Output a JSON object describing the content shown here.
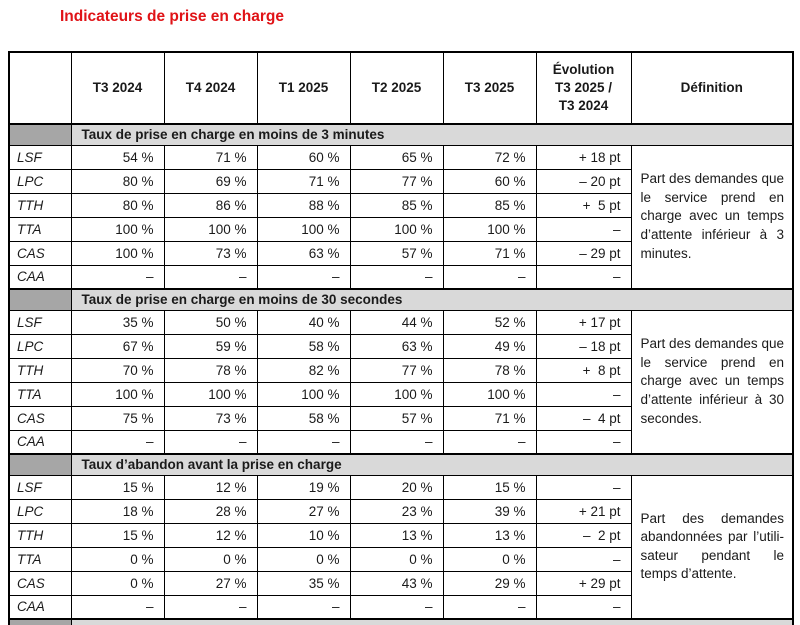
{
  "title": "Indicateurs de prise en charge",
  "colors": {
    "title_red": "#e01317",
    "section_band_gray": "#d9d9d9",
    "section_label_gray": "#a6a6a6",
    "border_black": "#000000"
  },
  "table": {
    "period_columns": [
      "T3 2024",
      "T4 2024",
      "T1 2025",
      "T2 2025",
      "T3 2025"
    ],
    "evolution_header": "Évolution\nT3 2025 /\nT3 2024",
    "definition_header": "Définition",
    "sections": [
      {
        "title": "Taux de prise en charge en moins de 3 minutes",
        "definition": "Part des demandes que le service prend en charge avec un temps d’attente inférieur à 3 minutes.",
        "rows": [
          {
            "label": "LSF",
            "values": [
              "54 %",
              "71 %",
              "60 %",
              "65 %",
              "72 %"
            ],
            "evolution": "+ 18 pt"
          },
          {
            "label": "LPC",
            "values": [
              "80 %",
              "69 %",
              "71 %",
              "77 %",
              "60 %"
            ],
            "evolution": "– 20 pt"
          },
          {
            "label": "TTH",
            "values": [
              "80 %",
              "86 %",
              "88 %",
              "85 %",
              "85 %"
            ],
            "evolution": "+  5 pt"
          },
          {
            "label": "TTA",
            "values": [
              "100 %",
              "100 %",
              "100 %",
              "100 %",
              "100 %"
            ],
            "evolution": "–"
          },
          {
            "label": "CAS",
            "values": [
              "100 %",
              "73 %",
              "63 %",
              "57 %",
              "71 %"
            ],
            "evolution": "– 29 pt"
          },
          {
            "label": "CAA",
            "values": [
              "–",
              "–",
              "–",
              "–",
              "–"
            ],
            "evolution": "–"
          }
        ]
      },
      {
        "title": "Taux de prise en charge en moins de 30 secondes",
        "definition": "Part des demandes que le service prend en charge avec un temps d’attente inférieur à 30 secondes.",
        "rows": [
          {
            "label": "LSF",
            "values": [
              "35 %",
              "50 %",
              "40 %",
              "44 %",
              "52 %"
            ],
            "evolution": "+ 17 pt"
          },
          {
            "label": "LPC",
            "values": [
              "67 %",
              "59 %",
              "58 %",
              "63 %",
              "49 %"
            ],
            "evolution": "– 18 pt"
          },
          {
            "label": "TTH",
            "values": [
              "70 %",
              "78 %",
              "82 %",
              "77 %",
              "78 %"
            ],
            "evolution": "+  8 pt"
          },
          {
            "label": "TTA",
            "values": [
              "100 %",
              "100 %",
              "100 %",
              "100 %",
              "100 %"
            ],
            "evolution": "–"
          },
          {
            "label": "CAS",
            "values": [
              "75 %",
              "73 %",
              "58 %",
              "57 %",
              "71 %"
            ],
            "evolution": "–  4 pt"
          },
          {
            "label": "CAA",
            "values": [
              "–",
              "–",
              "–",
              "–",
              "–"
            ],
            "evolution": "–"
          }
        ]
      },
      {
        "title": "Taux d’abandon avant la prise en charge",
        "definition": "Part des demandes abandonnées par l’utili­sateur pendant le temps d’attente.",
        "rows": [
          {
            "label": "LSF",
            "values": [
              "15 %",
              "12 %",
              "19 %",
              "20 %",
              "15 %"
            ],
            "evolution": "–"
          },
          {
            "label": "LPC",
            "values": [
              "18 %",
              "28 %",
              "27 %",
              "23 %",
              "39 %"
            ],
            "evolution": "+ 21 pt"
          },
          {
            "label": "TTH",
            "values": [
              "15 %",
              "12 %",
              "10 %",
              "13 %",
              "13 %"
            ],
            "evolution": "–  2 pt"
          },
          {
            "label": "TTA",
            "values": [
              "0 %",
              "0 %",
              "0 %",
              "0 %",
              "0 %"
            ],
            "evolution": "–"
          },
          {
            "label": "CAS",
            "values": [
              "0 %",
              "27 %",
              "35 %",
              "43 %",
              "29 %"
            ],
            "evolution": "+ 29 pt"
          },
          {
            "label": "CAA",
            "values": [
              "–",
              "–",
              "–",
              "–",
              "–"
            ],
            "evolution": "–"
          }
        ]
      }
    ]
  }
}
